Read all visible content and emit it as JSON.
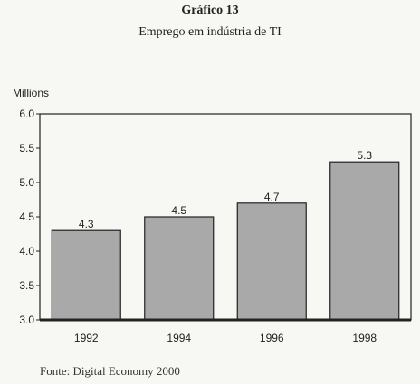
{
  "header": {
    "title": "Gráfico 13",
    "subtitle": "Emprego em indústria de TI"
  },
  "footer": {
    "source": "Fonte: Digital Economy 2000"
  },
  "chart_data": {
    "type": "bar",
    "title": "Gráfico 13",
    "subtitle": "Emprego em indústria de TI",
    "xlabel": "",
    "ylabel": "Millions",
    "categories": [
      "1992",
      "1994",
      "1996",
      "1998"
    ],
    "values": [
      4.3,
      4.5,
      4.7,
      5.3
    ],
    "data_labels": [
      "4.3",
      "4.5",
      "4.7",
      "5.3"
    ],
    "ylim": [
      3.0,
      6.0
    ],
    "yticks": [
      "3.0",
      "3.5",
      "4.0",
      "4.5",
      "5.0",
      "5.5",
      "6.0"
    ],
    "grid": false,
    "legend": "none",
    "colors": {
      "bar_fill": "#a9a9a9",
      "bar_stroke": "#222222",
      "frame": "#222222"
    }
  }
}
